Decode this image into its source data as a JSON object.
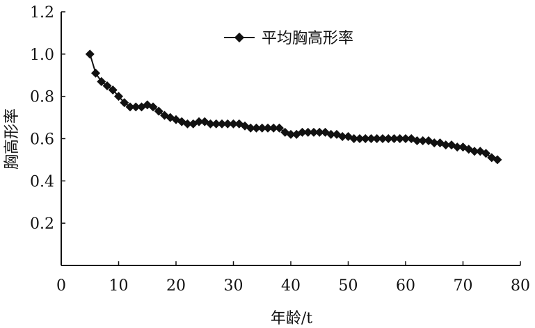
{
  "chart_data": {
    "type": "line",
    "title": "",
    "xlabel": "年龄/t",
    "ylabel": "胸高形率",
    "xlim": [
      0,
      80
    ],
    "ylim": [
      0,
      1.2
    ],
    "xticks": [
      "0",
      "10",
      "20",
      "30",
      "40",
      "50",
      "60",
      "70",
      "80"
    ],
    "yticks": [
      "0.2",
      "0.4",
      "0.6",
      "0.8",
      "1.0",
      "1.2"
    ],
    "grid": false,
    "legend_position": "top-center",
    "series": [
      {
        "name": "平均胸高形率",
        "color": "#111111",
        "marker": "diamond",
        "x": [
          5,
          6,
          7,
          8,
          9,
          10,
          11,
          12,
          13,
          14,
          15,
          16,
          17,
          18,
          19,
          20,
          21,
          22,
          23,
          24,
          25,
          26,
          27,
          28,
          29,
          30,
          31,
          32,
          33,
          34,
          35,
          36,
          37,
          38,
          39,
          40,
          41,
          42,
          43,
          44,
          45,
          46,
          47,
          48,
          49,
          50,
          51,
          52,
          53,
          54,
          55,
          56,
          57,
          58,
          59,
          60,
          61,
          62,
          63,
          64,
          65,
          66,
          67,
          68,
          69,
          70,
          71,
          72,
          73,
          74,
          75,
          76
        ],
        "values": [
          1.0,
          0.91,
          0.87,
          0.85,
          0.83,
          0.8,
          0.77,
          0.75,
          0.75,
          0.75,
          0.76,
          0.75,
          0.73,
          0.71,
          0.7,
          0.69,
          0.68,
          0.67,
          0.67,
          0.68,
          0.68,
          0.67,
          0.67,
          0.67,
          0.67,
          0.67,
          0.67,
          0.66,
          0.65,
          0.65,
          0.65,
          0.65,
          0.65,
          0.65,
          0.63,
          0.62,
          0.62,
          0.63,
          0.63,
          0.63,
          0.63,
          0.63,
          0.62,
          0.62,
          0.61,
          0.61,
          0.6,
          0.6,
          0.6,
          0.6,
          0.6,
          0.6,
          0.6,
          0.6,
          0.6,
          0.6,
          0.6,
          0.59,
          0.59,
          0.59,
          0.58,
          0.58,
          0.57,
          0.57,
          0.56,
          0.56,
          0.55,
          0.54,
          0.54,
          0.53,
          0.51,
          0.5
        ]
      }
    ]
  }
}
